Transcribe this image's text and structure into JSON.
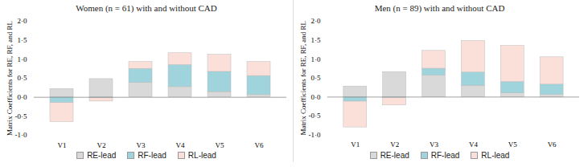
{
  "chart_data": [
    {
      "type": "bar",
      "stacked": true,
      "title": "Women (n = 61) with and without CAD",
      "y_label": "Matrix Coefficients for RE, RF, and RL",
      "categories": [
        "V1",
        "V2",
        "V3",
        "V4",
        "V5",
        "V6"
      ],
      "series": [
        {
          "name": "RE-lead",
          "color": "#d9d9d9",
          "values": [
            0.22,
            0.48,
            0.38,
            0.27,
            0.14,
            0.06
          ]
        },
        {
          "name": "RF-lead",
          "color": "#9fd4dc",
          "values": [
            -0.15,
            -0.02,
            0.37,
            0.58,
            0.53,
            0.5
          ]
        },
        {
          "name": "RL-lead",
          "color": "#fbe0da",
          "values": [
            -0.5,
            -0.09,
            0.18,
            0.31,
            0.45,
            0.37
          ]
        }
      ],
      "ylim": [
        -1,
        2
      ],
      "yticks": [
        {
          "value": -1,
          "label": "-1·0"
        },
        {
          "value": -0.5,
          "label": "-0·5"
        },
        {
          "value": 0,
          "label": "0·0"
        },
        {
          "value": 0.5,
          "label": "0·5"
        },
        {
          "value": 1,
          "label": "1·0"
        },
        {
          "value": 1.5,
          "label": "1·5"
        },
        {
          "value": 2,
          "label": "2·0"
        }
      ],
      "grid": false,
      "legend": "bottom"
    },
    {
      "type": "bar",
      "stacked": true,
      "title": "Men (n = 89) with and without CAD",
      "y_label": "Matrix Coefficients for RE, RF, and RL",
      "categories": [
        "V1",
        "V2",
        "V3",
        "V4",
        "V5",
        "V6"
      ],
      "series": [
        {
          "name": "RE-lead",
          "color": "#d9d9d9",
          "values": [
            0.28,
            0.66,
            0.57,
            0.3,
            0.1,
            0.06
          ]
        },
        {
          "name": "RF-lead",
          "color": "#9fd4dc",
          "values": [
            -0.12,
            -0.02,
            0.18,
            0.35,
            0.3,
            0.27
          ]
        },
        {
          "name": "RL-lead",
          "color": "#fbe0da",
          "values": [
            -0.68,
            -0.2,
            0.47,
            0.83,
            0.95,
            0.72
          ]
        }
      ],
      "ylim": [
        -1,
        2
      ],
      "yticks": [
        {
          "value": -1,
          "label": "-1·0"
        },
        {
          "value": -0.5,
          "label": "-0·5"
        },
        {
          "value": 0,
          "label": "0·0"
        },
        {
          "value": 0.5,
          "label": "0·5"
        },
        {
          "value": 1,
          "label": "1·0"
        },
        {
          "value": 1.5,
          "label": "1·5"
        },
        {
          "value": 2,
          "label": "2·0"
        }
      ],
      "grid": false,
      "legend": "bottom"
    }
  ]
}
